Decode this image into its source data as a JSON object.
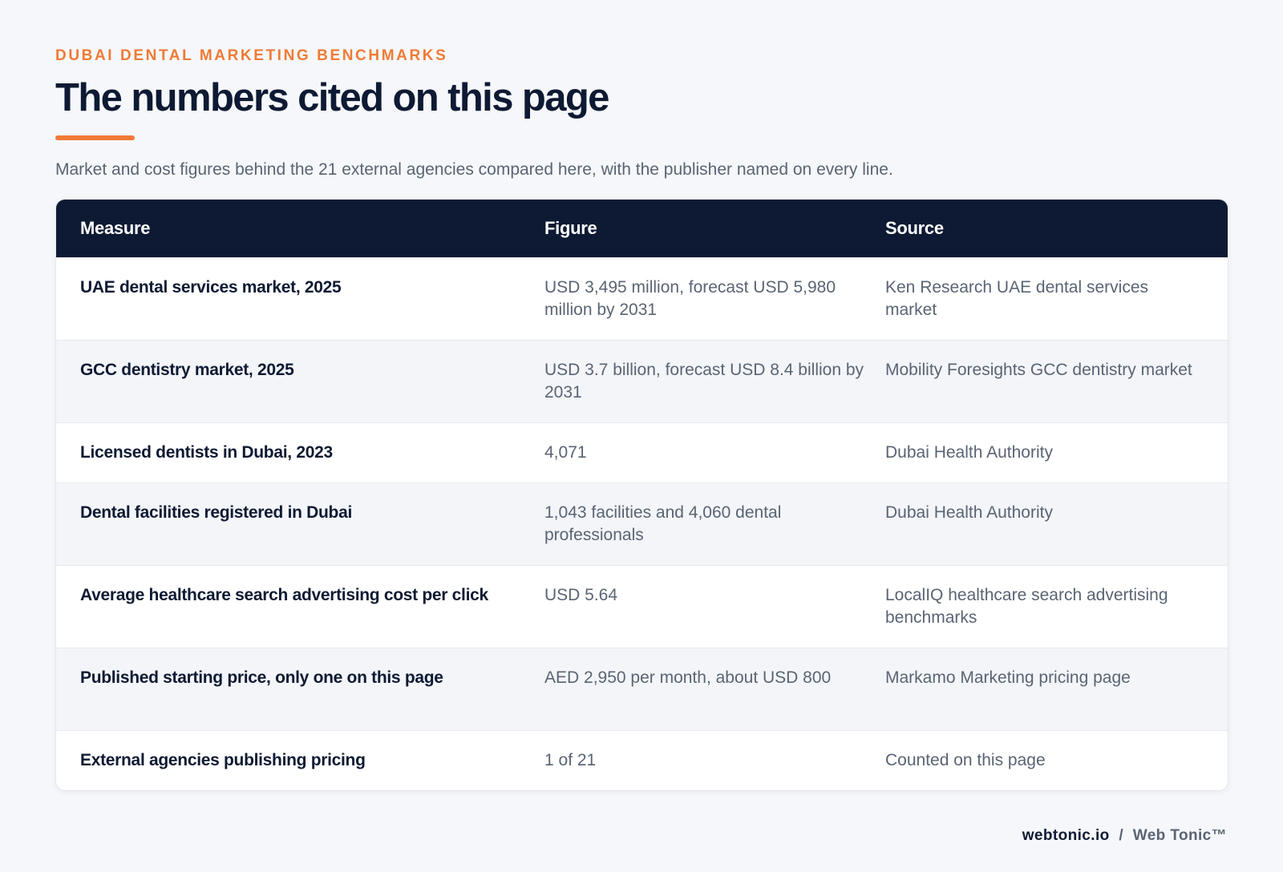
{
  "header": {
    "eyebrow": "DUBAI DENTAL MARKETING BENCHMARKS",
    "title": "The numbers cited on this page",
    "subtitle": "Market and cost figures behind the 21 external agencies compared here, with the publisher named on every line."
  },
  "table": {
    "columns": [
      "Measure",
      "Figure",
      "Source"
    ],
    "rows": [
      {
        "measure": "UAE dental services market, 2025",
        "figure": "USD 3,495 million, forecast USD 5,980 million by 2031",
        "source": "Ken Research UAE dental services market"
      },
      {
        "measure": "GCC dentistry market, 2025",
        "figure": "USD 3.7 billion, forecast USD 8.4 billion by 2031",
        "source": "Mobility Foresights GCC dentistry market"
      },
      {
        "measure": "Licensed dentists in Dubai, 2023",
        "figure": "4,071",
        "source": "Dubai Health Authority"
      },
      {
        "measure": "Dental facilities registered in Dubai",
        "figure": "1,043 facilities and 4,060 dental professionals",
        "source": "Dubai Health Authority"
      },
      {
        "measure": "Average healthcare search advertising cost per click",
        "figure": "USD 5.64",
        "source": "LocalIQ healthcare search advertising benchmarks"
      },
      {
        "measure": "Published starting price, only one on this page",
        "figure": "AED 2,950 per month, about USD 800",
        "source": "Markamo Marketing pricing page"
      },
      {
        "measure": "External agencies publishing pricing",
        "figure": "1 of 21",
        "source": "Counted on this page"
      }
    ]
  },
  "footer": {
    "domain": "webtonic.io",
    "separator": "/",
    "brand": "Web Tonic™"
  }
}
